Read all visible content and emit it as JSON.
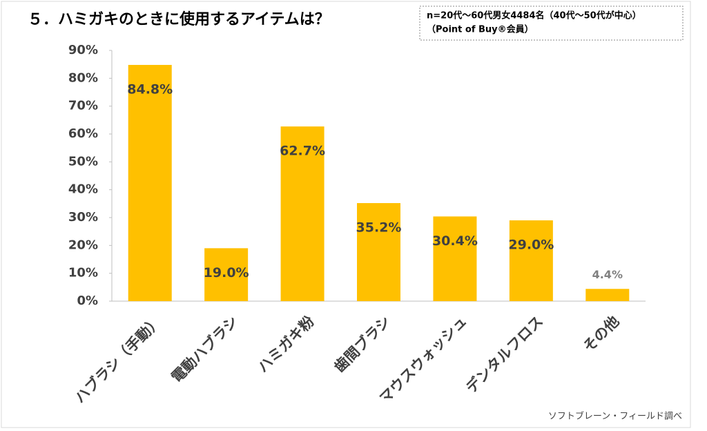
{
  "chart_data": {
    "type": "bar",
    "title": "５．ハミガキのときに使用するアイテムは？",
    "note": [
      "n=20代～60代男女4484名（40代～50代が中心）",
      "（Point of Buy®会員）"
    ],
    "source": "ソフトブレーン・フィールド調べ",
    "categories": [
      "ハブラシ（手動）",
      "電動ハブラシ",
      "ハミガキ粉",
      "歯間ブラシ",
      "マウスウォッシュ",
      "デンタルフロス",
      "その他"
    ],
    "values": [
      84.8,
      19.0,
      62.7,
      35.2,
      30.4,
      29.0,
      4.4
    ],
    "value_labels": [
      "84.8%",
      "19.0%",
      "62.7%",
      "35.2%",
      "30.4%",
      "29.0%",
      "4.4%"
    ],
    "color": "#ffc000",
    "ylim": [
      0,
      90
    ],
    "yticks": [
      {
        "value": 0,
        "label": "0%"
      },
      {
        "value": 10,
        "label": "10%"
      },
      {
        "value": 20,
        "label": "20%"
      },
      {
        "value": 30,
        "label": "30%"
      },
      {
        "value": 40,
        "label": "40%"
      },
      {
        "value": 50,
        "label": "50%"
      },
      {
        "value": 60,
        "label": "60%"
      },
      {
        "value": 70,
        "label": "70%"
      },
      {
        "value": 80,
        "label": "80%"
      },
      {
        "value": 90,
        "label": "90%"
      }
    ]
  }
}
